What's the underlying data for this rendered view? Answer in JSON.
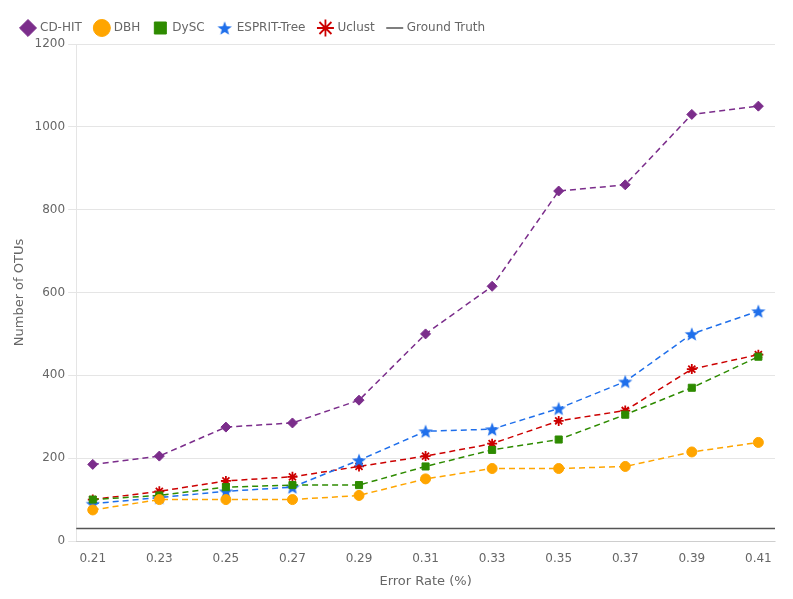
{
  "chart_data": {
    "type": "line",
    "x_label": "Error Rate (%)",
    "y_label": "Number of OTUs",
    "x": [
      0.21,
      0.23,
      0.25,
      0.27,
      0.29,
      0.31,
      0.33,
      0.35,
      0.37,
      0.39,
      0.41
    ],
    "series": [
      {
        "name": "CD-HIT",
        "color": "#7B2D8B",
        "marker": "diamond",
        "line_style": "dashed",
        "values": [
          185,
          205,
          275,
          285,
          340,
          500,
          615,
          845,
          860,
          1030,
          1050
        ]
      },
      {
        "name": "DBH",
        "color": "#FFA500",
        "marker": "circle",
        "line_style": "dashed",
        "values": [
          75,
          100,
          100,
          100,
          110,
          150,
          175,
          175,
          180,
          215,
          238
        ]
      },
      {
        "name": "DySC",
        "color": "#2E8B00",
        "marker": "square",
        "line_style": "dashed",
        "values": [
          100,
          110,
          130,
          135,
          135,
          180,
          220,
          245,
          305,
          370,
          445
        ]
      },
      {
        "name": "ESPRIT-Tree",
        "color": "#1F6FEB",
        "marker": "star",
        "line_style": "dashed",
        "values": [
          90,
          105,
          120,
          130,
          195,
          265,
          270,
          320,
          385,
          500,
          555
        ]
      },
      {
        "name": "Uclust",
        "color": "#CC0000",
        "marker": "asterisk",
        "line_style": "dashed",
        "values": [
          100,
          120,
          145,
          155,
          180,
          205,
          235,
          290,
          315,
          415,
          450
        ]
      },
      {
        "name": "Ground Truth",
        "color": "#555555",
        "type": "hline",
        "line_style": "solid",
        "value": 30
      }
    ],
    "xlim": [
      0.205,
      0.415
    ],
    "xticks": [
      0.21,
      0.23,
      0.25,
      0.27,
      0.29,
      0.31,
      0.33,
      0.35,
      0.37,
      0.39,
      0.41
    ],
    "ylim": [
      0,
      1200
    ],
    "yticks": [
      0,
      200,
      400,
      600,
      800,
      1000,
      1200
    ],
    "grid": "y",
    "legend": "upper left"
  }
}
